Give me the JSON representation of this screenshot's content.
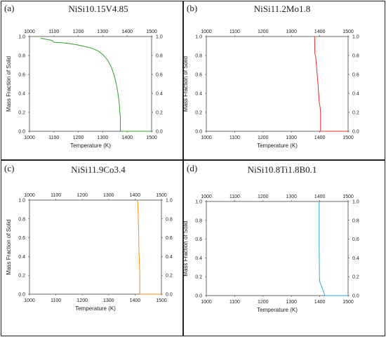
{
  "chart_data": [
    {
      "type": "line",
      "panel_label": "(a)",
      "title": "NiSi10.15V4.85",
      "xlabel": "Temperature (K)",
      "ylabel": "Mass Fraction of Solid",
      "xlim": [
        1000,
        1500
      ],
      "ylim": [
        0,
        1
      ],
      "xticks": [
        "1000",
        "1100",
        "1200",
        "1300",
        "1400",
        "1500"
      ],
      "yticks": [
        "0.0",
        "0.2",
        "0.4",
        "0.6",
        "0.8",
        "1.0"
      ],
      "color": "#2ca02c",
      "series": [
        {
          "x": [
            1045,
            1050,
            1070,
            1090,
            1100,
            1150,
            1200,
            1250,
            1280,
            1300,
            1320,
            1335,
            1348,
            1358,
            1364,
            1368,
            1370,
            1371,
            1372,
            1372,
            1400,
            1450,
            1500
          ],
          "y": [
            0.98,
            0.98,
            0.97,
            0.96,
            0.94,
            0.93,
            0.91,
            0.88,
            0.85,
            0.81,
            0.75,
            0.68,
            0.58,
            0.47,
            0.37,
            0.28,
            0.2,
            0.17,
            0.16,
            0.0,
            0.0,
            0.0,
            0.0
          ]
        }
      ]
    },
    {
      "type": "line",
      "panel_label": "(b)",
      "title": "NiSi11.2Mo1.8",
      "xlabel": "Temperature (K)",
      "ylabel": "Mass Fraction of Solid",
      "xlim": [
        1000,
        1500
      ],
      "ylim": [
        0,
        1
      ],
      "xticks": [
        "1000",
        "1100",
        "1200",
        "1300",
        "1400",
        "1500"
      ],
      "yticks": [
        "0.0",
        "0.2",
        "0.4",
        "0.6",
        "0.8",
        "1.0"
      ],
      "color": "#e0302e",
      "series": [
        {
          "x": [
            1382,
            1383,
            1386,
            1391,
            1395,
            1398,
            1401,
            1403,
            1403,
            1450,
            1500
          ],
          "y": [
            1.0,
            0.82,
            0.78,
            0.6,
            0.45,
            0.31,
            0.26,
            0.2,
            0.0,
            0.0,
            0.0
          ]
        }
      ]
    },
    {
      "type": "line",
      "panel_label": "(c)",
      "title": "NiSi11.9Co3.4",
      "xlabel": "Temperature (K)",
      "ylabel": "Mass Fraction of Solid",
      "xlim": [
        1000,
        1500
      ],
      "ylim": [
        0,
        1
      ],
      "xticks": [
        "1000",
        "1100",
        "1200",
        "1300",
        "1400",
        "1500"
      ],
      "yticks": [
        "0.0",
        "0.2",
        "0.4",
        "0.6",
        "0.8",
        "1.0"
      ],
      "color": "#ff8c1a",
      "series": [
        {
          "x": [
            1408,
            1410,
            1412,
            1414,
            1415,
            1416,
            1418,
            1418,
            1450,
            1500
          ],
          "y": [
            1.0,
            0.98,
            0.85,
            0.6,
            0.43,
            0.39,
            0.2,
            0.0,
            0.0,
            0.0
          ]
        }
      ]
    },
    {
      "type": "line",
      "panel_label": "(d)",
      "title": "NiSi10.8Ti1.8B0.1",
      "xlabel": "Temperature (K)",
      "ylabel": "Mass Fraction of Solid",
      "xlim": [
        1000,
        1500
      ],
      "ylim": [
        0,
        1
      ],
      "xticks": [
        "1000",
        "1100",
        "1200",
        "1300",
        "1400",
        "1500"
      ],
      "yticks": [
        "0.0",
        "0.2",
        "0.4",
        "0.6",
        "0.8",
        "1.0"
      ],
      "color": "#29a9e0",
      "series": [
        {
          "x": [
            1398,
            1398,
            1399,
            1400,
            1410,
            1418,
            1450,
            1500
          ],
          "y": [
            1.0,
            0.5,
            0.2,
            0.15,
            0.07,
            0.0,
            0.0,
            0.0
          ]
        }
      ]
    }
  ]
}
